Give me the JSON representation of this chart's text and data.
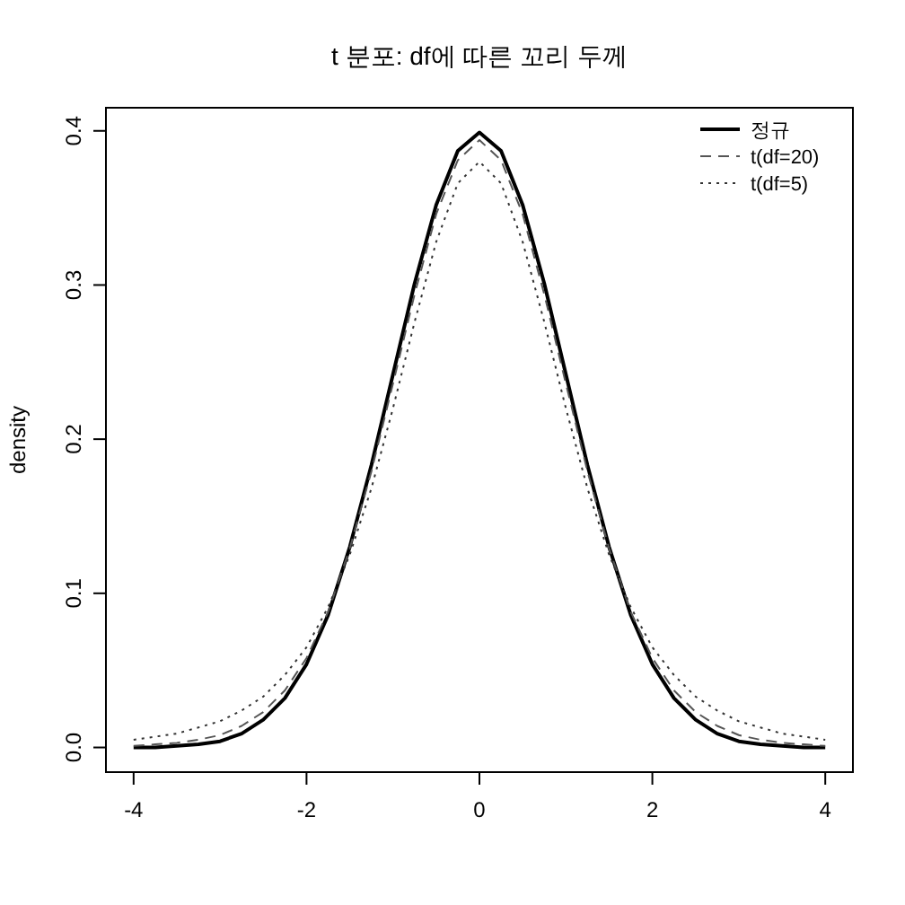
{
  "chart_data": {
    "type": "line",
    "title": "t 분포: df에 따른 꼬리 두께",
    "ylabel": "density",
    "x": [
      -4,
      -3.75,
      -3.5,
      -3.25,
      -3,
      -2.75,
      -2.5,
      -2.25,
      -2,
      -1.75,
      -1.5,
      -1.25,
      -1,
      -0.75,
      -0.5,
      -0.25,
      0,
      0.25,
      0.5,
      0.75,
      1,
      1.25,
      1.5,
      1.75,
      2,
      2.25,
      2.5,
      2.75,
      3,
      3.25,
      3.5,
      3.75,
      4
    ],
    "series": [
      {
        "name": "정규",
        "color": "#000000",
        "line_style": "solid",
        "values": [
          0.0,
          0.0,
          0.001,
          0.002,
          0.004,
          0.009,
          0.018,
          0.032,
          0.054,
          0.086,
          0.13,
          0.183,
          0.242,
          0.301,
          0.352,
          0.387,
          0.399,
          0.387,
          0.352,
          0.301,
          0.242,
          0.183,
          0.13,
          0.086,
          0.054,
          0.032,
          0.018,
          0.009,
          0.004,
          0.002,
          0.001,
          0.0,
          0.0
        ]
      },
      {
        "name": "t(df=20)",
        "color": "#555555",
        "line_style": "dashed",
        "values": [
          0.001,
          0.002,
          0.003,
          0.005,
          0.008,
          0.014,
          0.023,
          0.037,
          0.058,
          0.088,
          0.129,
          0.179,
          0.236,
          0.294,
          0.346,
          0.381,
          0.394,
          0.381,
          0.346,
          0.294,
          0.236,
          0.179,
          0.129,
          0.088,
          0.058,
          0.037,
          0.023,
          0.014,
          0.008,
          0.005,
          0.003,
          0.002,
          0.001
        ]
      },
      {
        "name": "t(df=5)",
        "color": "#333333",
        "line_style": "dotted",
        "values": [
          0.005,
          0.007,
          0.009,
          0.013,
          0.017,
          0.024,
          0.033,
          0.047,
          0.065,
          0.091,
          0.125,
          0.168,
          0.22,
          0.276,
          0.328,
          0.366,
          0.38,
          0.366,
          0.328,
          0.276,
          0.22,
          0.168,
          0.125,
          0.091,
          0.065,
          0.047,
          0.033,
          0.024,
          0.017,
          0.013,
          0.009,
          0.007,
          0.005
        ]
      }
    ],
    "xlim": [
      -4.32,
      4.32
    ],
    "ylim": [
      -0.016,
      0.415
    ],
    "xticks": [
      -4,
      -2,
      0,
      2,
      4
    ],
    "yticks": [
      {
        "value": 0,
        "label": "0.0"
      },
      {
        "value": 0.1,
        "label": "0.1"
      },
      {
        "value": 0.2,
        "label": "0.2"
      },
      {
        "value": 0.3,
        "label": "0.3"
      },
      {
        "value": 0.4,
        "label": "0.4"
      }
    ],
    "legend": "top right",
    "grid": false,
    "marker": "none"
  }
}
